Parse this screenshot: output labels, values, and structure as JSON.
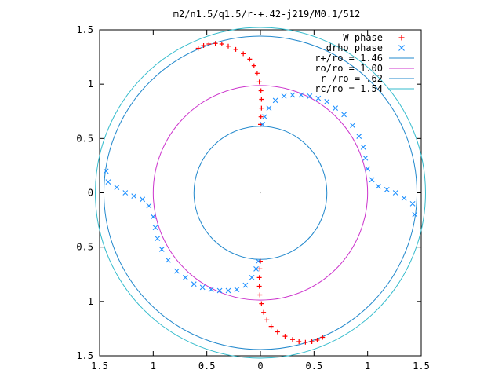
{
  "chart_data": {
    "type": "scatter",
    "title": "m2/n1.5/q1.5/r-+.42-j219/M0.1/512",
    "xlabel": "",
    "ylabel": "",
    "xlim": [
      -1.5,
      1.5
    ],
    "ylim": [
      -1.5,
      1.5
    ],
    "x_ticks": [
      -1.5,
      -1,
      -0.5,
      0,
      0.5,
      1,
      1.5
    ],
    "y_ticks": [
      -1.5,
      -1,
      -0.5,
      0,
      0.5,
      1,
      1.5
    ],
    "x_tick_labels": [
      "1.5",
      "1",
      "0.5",
      "0",
      "0.5",
      "1",
      "1.5"
    ],
    "y_tick_labels": [
      "1.5",
      "1",
      "0.5",
      "0",
      "0.5",
      "1",
      "1.5"
    ],
    "grid": false,
    "legend_position": "top-right",
    "legend": [
      {
        "label": "W phase",
        "marker": "plus",
        "color": "#ff0000"
      },
      {
        "label": "drho phase",
        "marker": "cross",
        "color": "#1e90ff"
      },
      {
        "label": "r+/ro = 1.46",
        "marker": "line",
        "color": "#2288cc"
      },
      {
        "label": "ro/ro = 1.00",
        "marker": "line",
        "color": "#cc33cc"
      },
      {
        "label": "r-/ro = .62",
        "marker": "line",
        "color": "#2288cc"
      },
      {
        "label": "rc/ro = 1.54",
        "marker": "line",
        "color": "#33bbcc"
      }
    ],
    "circles": [
      {
        "name": "r+/ro",
        "radius": 1.46,
        "color": "#2288cc"
      },
      {
        "name": "ro/ro",
        "radius": 1.0,
        "color": "#cc33cc"
      },
      {
        "name": "r-/ro",
        "radius": 0.62,
        "color": "#2288cc"
      },
      {
        "name": "rc/ro",
        "radius": 1.54,
        "color": "#33bbcc"
      }
    ],
    "series": [
      {
        "name": "W phase",
        "marker": "plus",
        "color": "#ff0000",
        "points": [
          [
            0.0,
            0.63
          ],
          [
            0.005,
            0.7
          ],
          [
            0.01,
            0.78
          ],
          [
            0.01,
            0.86
          ],
          [
            0.005,
            0.94
          ],
          [
            -0.01,
            1.02
          ],
          [
            -0.03,
            1.1
          ],
          [
            -0.06,
            1.17
          ],
          [
            -0.1,
            1.23
          ],
          [
            -0.16,
            1.28
          ],
          [
            -0.23,
            1.32
          ],
          [
            -0.3,
            1.35
          ],
          [
            -0.36,
            1.37
          ],
          [
            -0.42,
            1.375
          ],
          [
            -0.48,
            1.37
          ],
          [
            -0.53,
            1.355
          ],
          [
            -0.58,
            1.33
          ],
          [
            0.0,
            -0.63
          ],
          [
            -0.005,
            -0.7
          ],
          [
            -0.01,
            -0.78
          ],
          [
            -0.01,
            -0.86
          ],
          [
            -0.005,
            -0.94
          ],
          [
            0.01,
            -1.02
          ],
          [
            0.03,
            -1.1
          ],
          [
            0.06,
            -1.17
          ],
          [
            0.1,
            -1.23
          ],
          [
            0.16,
            -1.28
          ],
          [
            0.23,
            -1.32
          ],
          [
            0.3,
            -1.35
          ],
          [
            0.36,
            -1.37
          ],
          [
            0.42,
            -1.375
          ],
          [
            0.48,
            -1.37
          ],
          [
            0.53,
            -1.355
          ],
          [
            0.58,
            -1.33
          ]
        ]
      },
      {
        "name": "drho phase",
        "marker": "cross",
        "color": "#1e90ff",
        "points": [
          [
            0.02,
            0.63
          ],
          [
            0.04,
            0.7
          ],
          [
            0.08,
            0.78
          ],
          [
            0.14,
            0.85
          ],
          [
            0.22,
            0.89
          ],
          [
            0.3,
            0.9
          ],
          [
            0.38,
            0.9
          ],
          [
            0.46,
            0.89
          ],
          [
            0.54,
            0.87
          ],
          [
            0.62,
            0.84
          ],
          [
            0.7,
            0.78
          ],
          [
            0.78,
            0.72
          ],
          [
            0.86,
            0.62
          ],
          [
            0.92,
            0.52
          ],
          [
            0.96,
            0.42
          ],
          [
            0.98,
            0.32
          ],
          [
            1.0,
            0.22
          ],
          [
            1.04,
            0.12
          ],
          [
            1.1,
            0.06
          ],
          [
            1.18,
            0.03
          ],
          [
            1.26,
            0.0
          ],
          [
            1.34,
            -0.05
          ],
          [
            1.42,
            -0.1
          ],
          [
            1.44,
            -0.2
          ],
          [
            -0.02,
            -0.63
          ],
          [
            -0.04,
            -0.7
          ],
          [
            -0.08,
            -0.78
          ],
          [
            -0.14,
            -0.85
          ],
          [
            -0.22,
            -0.89
          ],
          [
            -0.3,
            -0.9
          ],
          [
            -0.38,
            -0.9
          ],
          [
            -0.46,
            -0.89
          ],
          [
            -0.54,
            -0.87
          ],
          [
            -0.62,
            -0.84
          ],
          [
            -0.7,
            -0.78
          ],
          [
            -0.78,
            -0.72
          ],
          [
            -0.86,
            -0.62
          ],
          [
            -0.92,
            -0.52
          ],
          [
            -0.96,
            -0.42
          ],
          [
            -0.98,
            -0.32
          ],
          [
            -1.0,
            -0.22
          ],
          [
            -1.04,
            -0.12
          ],
          [
            -1.1,
            -0.06
          ],
          [
            -1.18,
            -0.03
          ],
          [
            -1.26,
            0.0
          ],
          [
            -1.34,
            0.05
          ],
          [
            -1.42,
            0.1
          ],
          [
            -1.44,
            0.2
          ]
        ]
      }
    ]
  }
}
